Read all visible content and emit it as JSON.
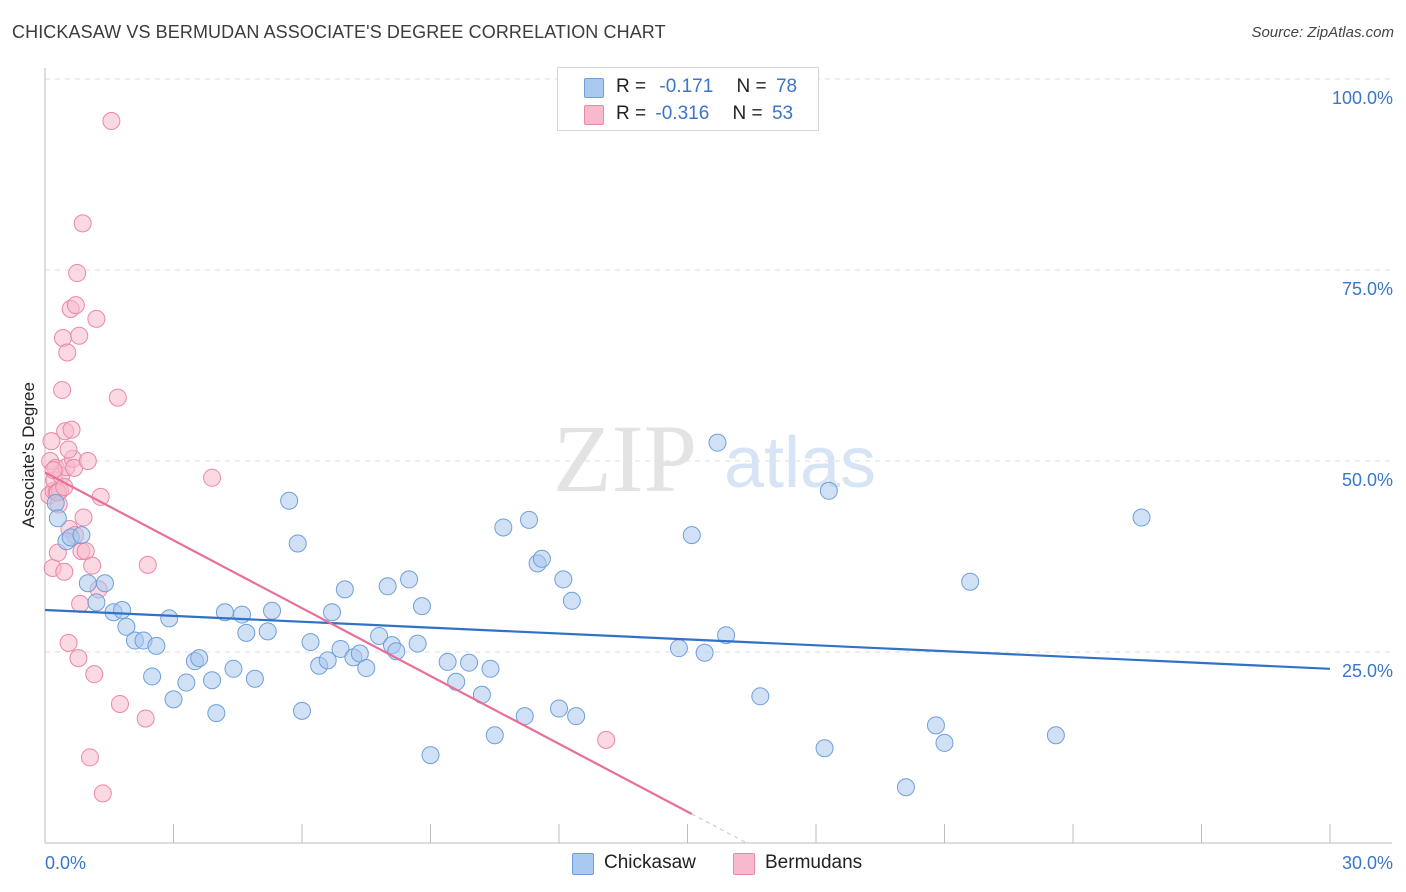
{
  "header": {
    "title": "CHICKASAW VS BERMUDAN ASSOCIATE'S DEGREE CORRELATION CHART",
    "source": "Source: ZipAtlas.com"
  },
  "watermark": {
    "zip": "ZIP",
    "atlas": "atlas"
  },
  "legend": {
    "rows": [
      {
        "r_label": "R =",
        "r_value": "-0.171",
        "n_label": "N =",
        "n_value": "78"
      },
      {
        "r_label": "R =",
        "r_value": "-0.316",
        "n_label": "N =",
        "n_value": "53"
      }
    ]
  },
  "bottom_legend": {
    "series1": "Chickasaw",
    "series2": "Bermudans"
  },
  "chart_data": {
    "type": "scatter",
    "title": "CHICKASAW VS BERMUDAN ASSOCIATE'S DEGREE CORRELATION CHART",
    "xlabel": "",
    "ylabel": "Associate's Degree",
    "xlim": [
      0,
      30
    ],
    "ylim": [
      0,
      100
    ],
    "x_tick_labels": [
      "0.0%",
      "30.0%"
    ],
    "y_tick_labels": [
      "25.0%",
      "50.0%",
      "75.0%",
      "100.0%"
    ],
    "y_ticks": [
      25,
      50,
      75,
      100
    ],
    "grid": "horizontal dashed",
    "legend_position": "top-center",
    "colors": {
      "chickasaw_fill": "#a9c8ef",
      "chickasaw_stroke": "#6f9fd8",
      "chickasaw_line": "#2f72c8",
      "bermudans_fill": "#f7b9cc",
      "bermudans_stroke": "#ea88a6",
      "bermudans_line": "#e86f98",
      "tick_label": "#3a76c8"
    },
    "series": [
      {
        "name": "Chickasaw",
        "r": -0.171,
        "n": 78,
        "trend": {
          "x": [
            0,
            30
          ],
          "y": [
            30.5,
            22.8
          ]
        },
        "points": [
          [
            0.25,
            44.5
          ],
          [
            0.3,
            42.5
          ],
          [
            0.5,
            39.5
          ],
          [
            0.6,
            40
          ],
          [
            0.85,
            40.3
          ],
          [
            1.0,
            34
          ],
          [
            1.2,
            31.5
          ],
          [
            1.4,
            34
          ],
          [
            1.6,
            30.2
          ],
          [
            1.8,
            30.5
          ],
          [
            1.9,
            28.3
          ],
          [
            2.1,
            26.5
          ],
          [
            2.3,
            26.5
          ],
          [
            2.5,
            21.8
          ],
          [
            2.6,
            25.8
          ],
          [
            2.9,
            29.4
          ],
          [
            3.0,
            18.8
          ],
          [
            3.3,
            21
          ],
          [
            3.5,
            23.8
          ],
          [
            3.6,
            24.2
          ],
          [
            3.9,
            21.3
          ],
          [
            4.0,
            17
          ],
          [
            4.2,
            30.2
          ],
          [
            4.4,
            22.8
          ],
          [
            4.6,
            29.9
          ],
          [
            4.7,
            27.5
          ],
          [
            4.9,
            21.5
          ],
          [
            5.2,
            27.7
          ],
          [
            5.3,
            30.4
          ],
          [
            5.7,
            44.8
          ],
          [
            5.9,
            39.2
          ],
          [
            6.0,
            17.3
          ],
          [
            6.2,
            26.3
          ],
          [
            6.4,
            23.2
          ],
          [
            6.6,
            23.9
          ],
          [
            6.7,
            30.2
          ],
          [
            6.9,
            25.4
          ],
          [
            7.0,
            33.2
          ],
          [
            7.2,
            24.3
          ],
          [
            7.35,
            24.8
          ],
          [
            7.5,
            22.9
          ],
          [
            7.8,
            27.1
          ],
          [
            8.0,
            33.6
          ],
          [
            8.1,
            25.9
          ],
          [
            8.2,
            25.1
          ],
          [
            8.5,
            34.5
          ],
          [
            8.7,
            26.1
          ],
          [
            8.8,
            31
          ],
          [
            9.0,
            11.5
          ],
          [
            9.4,
            23.7
          ],
          [
            9.6,
            21.1
          ],
          [
            9.9,
            23.6
          ],
          [
            10.2,
            19.4
          ],
          [
            10.4,
            22.8
          ],
          [
            10.5,
            14.1
          ],
          [
            10.7,
            41.3
          ],
          [
            11.2,
            16.6
          ],
          [
            11.3,
            42.3
          ],
          [
            11.5,
            36.6
          ],
          [
            11.6,
            37.2
          ],
          [
            12.0,
            17.6
          ],
          [
            12.1,
            34.5
          ],
          [
            12.3,
            31.7
          ],
          [
            12.4,
            16.6
          ],
          [
            14.8,
            25.5
          ],
          [
            15.1,
            40.3
          ],
          [
            15.4,
            24.9
          ],
          [
            15.7,
            52.4
          ],
          [
            15.9,
            27.2
          ],
          [
            16.7,
            19.2
          ],
          [
            18.2,
            12.4
          ],
          [
            18.3,
            46.1
          ],
          [
            20.1,
            7.3
          ],
          [
            20.8,
            15.4
          ],
          [
            21.0,
            13.1
          ],
          [
            21.6,
            34.2
          ],
          [
            23.6,
            14.1
          ],
          [
            25.6,
            42.6
          ]
        ]
      },
      {
        "name": "Bermudans",
        "r": -0.316,
        "n": 53,
        "trend": {
          "x": [
            0,
            15.1
          ],
          "y": [
            48.5,
            3.8
          ]
        },
        "points": [
          [
            0.1,
            45.5
          ],
          [
            0.12,
            50
          ],
          [
            0.15,
            52.6
          ],
          [
            0.18,
            36
          ],
          [
            0.2,
            46.1
          ],
          [
            0.22,
            47.5
          ],
          [
            0.25,
            49.1
          ],
          [
            0.27,
            45.9
          ],
          [
            0.3,
            38
          ],
          [
            0.32,
            44.3
          ],
          [
            0.35,
            46.1
          ],
          [
            0.38,
            48.1
          ],
          [
            0.4,
            59.3
          ],
          [
            0.42,
            66.1
          ],
          [
            0.45,
            35.5
          ],
          [
            0.47,
            53.9
          ],
          [
            0.5,
            49.2
          ],
          [
            0.52,
            64.2
          ],
          [
            0.55,
            26.2
          ],
          [
            0.57,
            41.1
          ],
          [
            0.6,
            69.9
          ],
          [
            0.62,
            54.1
          ],
          [
            0.65,
            50.3
          ],
          [
            0.68,
            49.1
          ],
          [
            0.7,
            40.3
          ],
          [
            0.72,
            70.4
          ],
          [
            0.75,
            74.6
          ],
          [
            0.78,
            24.2
          ],
          [
            0.8,
            66.4
          ],
          [
            0.82,
            31.3
          ],
          [
            0.85,
            38.2
          ],
          [
            0.88,
            81.1
          ],
          [
            0.9,
            42.6
          ],
          [
            0.95,
            38.2
          ],
          [
            1.0,
            50
          ],
          [
            1.05,
            11.2
          ],
          [
            1.1,
            36.3
          ],
          [
            1.15,
            22.1
          ],
          [
            1.2,
            68.6
          ],
          [
            1.25,
            33.2
          ],
          [
            1.3,
            45.3
          ],
          [
            1.35,
            6.5
          ],
          [
            1.55,
            94.5
          ],
          [
            1.7,
            58.3
          ],
          [
            1.75,
            18.2
          ],
          [
            2.35,
            16.3
          ],
          [
            2.4,
            36.4
          ],
          [
            3.9,
            47.8
          ],
          [
            13.1,
            13.5
          ],
          [
            0.3,
            45.9
          ],
          [
            0.55,
            51.5
          ],
          [
            0.2,
            48.8
          ],
          [
            0.45,
            46.6
          ]
        ]
      }
    ]
  }
}
